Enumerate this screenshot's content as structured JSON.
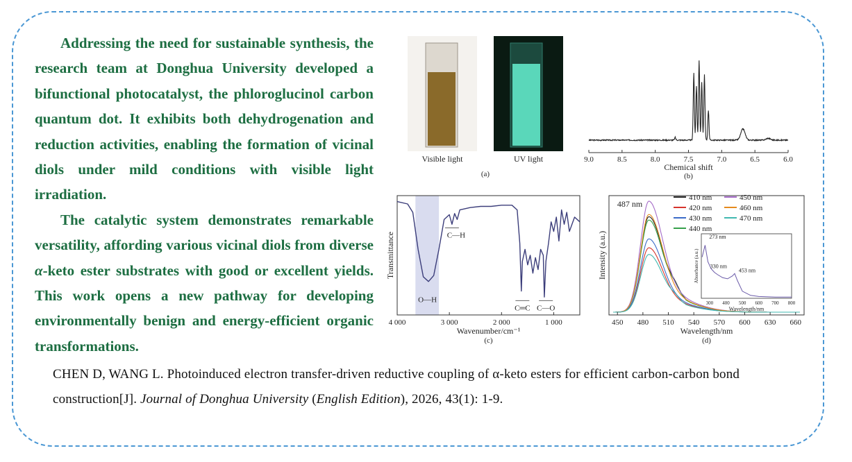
{
  "paragraphs": [
    "Addressing the need for sustainable synthesis, the research team at Donghua University developed a bifunctional photocatalyst, the phloroglucinol carbon quantum dot. It exhibits both dehydrogenation and reduction activities, enabling the formation of vicinal diols under mild conditions with visible light irradiation.",
    "The catalytic system demonstrates remarkable versatility, affording various vicinal diols from diverse α-keto ester substrates with good or excellent yields. This work opens a new pathway for developing environmentally benign and energy-efficient organic transformations."
  ],
  "citation": {
    "authors_title": "CHEN D, WANG L. Photoinduced electron transfer-driven reductive coupling of α-keto esters for efficient carbon-carbon bond construction[J]. ",
    "journal": "Journal of Donghua University",
    "paren_open": " (",
    "edition": "English Edition",
    "rest": "), 2026, 43(1): 1-9."
  },
  "panel_a": {
    "label": "(a)",
    "left_caption": "Visible light",
    "right_caption": "UV light",
    "colors": {
      "visible_liquid": "#8a6a2a",
      "uv_background": "#0a1a12",
      "uv_liquid": "#5fe3c4"
    }
  },
  "chart_data": [
    {
      "type": "line",
      "panel": "(b)",
      "xlabel": "Chemical shift",
      "ylabel": "",
      "xlim": [
        9.0,
        6.0
      ],
      "x_ticks": [
        "9.0",
        "8.5",
        "8.0",
        "7.5",
        "7.0",
        "6.5",
        "6.0"
      ],
      "x_reversed": true,
      "peaks": [
        {
          "x": 7.7,
          "y": 0.03
        },
        {
          "x": 7.42,
          "y": 0.72
        },
        {
          "x": 7.38,
          "y": 0.58
        },
        {
          "x": 7.34,
          "y": 0.85
        },
        {
          "x": 7.3,
          "y": 0.62
        },
        {
          "x": 7.26,
          "y": 0.7
        },
        {
          "x": 7.2,
          "y": 0.32
        },
        {
          "x": 6.68,
          "y": 0.12
        },
        {
          "x": 6.3,
          "y": 0.02
        }
      ],
      "color": "#222222"
    },
    {
      "type": "line",
      "panel": "(c)",
      "xlabel": "Wavenumber/cm⁻¹",
      "ylabel": "Transmittance",
      "xlim": [
        4000,
        500
      ],
      "x_ticks": [
        "4 000",
        "3 000",
        "2 000",
        "1 000"
      ],
      "x_reversed": true,
      "x": [
        4000,
        3800,
        3700,
        3600,
        3500,
        3400,
        3300,
        3200,
        3100,
        3000,
        2950,
        2900,
        2850,
        2800,
        2600,
        2400,
        2200,
        2000,
        1800,
        1700,
        1650,
        1620,
        1600,
        1550,
        1500,
        1450,
        1400,
        1350,
        1300,
        1250,
        1200,
        1180,
        1150,
        1100,
        1050,
        1000,
        950,
        900,
        850,
        800,
        750,
        700,
        600,
        500
      ],
      "y": [
        0.95,
        0.93,
        0.86,
        0.55,
        0.32,
        0.28,
        0.33,
        0.55,
        0.8,
        0.84,
        0.76,
        0.85,
        0.8,
        0.88,
        0.9,
        0.91,
        0.91,
        0.92,
        0.92,
        0.88,
        0.6,
        0.2,
        0.45,
        0.55,
        0.42,
        0.5,
        0.35,
        0.48,
        0.38,
        0.55,
        0.5,
        0.15,
        0.45,
        0.6,
        0.78,
        0.7,
        0.82,
        0.62,
        0.88,
        0.76,
        0.86,
        0.7,
        0.82,
        0.78
      ],
      "annotations": [
        "O—H",
        "C—H",
        "C═C",
        "C—O"
      ],
      "shaded_band": [
        3650,
        3200
      ],
      "color": "#3b3d7a",
      "band_color": "#d9dcef"
    },
    {
      "type": "line",
      "panel": "(d)",
      "xlabel": "Wavelength/nm",
      "ylabel": "Intensity (a.u.)",
      "xlim": [
        440,
        670
      ],
      "x_ticks": [
        "450",
        "480",
        "510",
        "540",
        "570",
        "600",
        "630",
        "660"
      ],
      "peak_label": "487 nm",
      "series": [
        {
          "name": "410 nm",
          "color": "#222222",
          "peak": 0.86
        },
        {
          "name": "420 nm",
          "color": "#d6342c",
          "peak": 0.58
        },
        {
          "name": "430 nm",
          "color": "#3b6bc8",
          "peak": 0.66
        },
        {
          "name": "440 nm",
          "color": "#35a04a",
          "peak": 0.83
        },
        {
          "name": "450 nm",
          "color": "#a56cc8",
          "peak": 1.0
        },
        {
          "name": "460 nm",
          "color": "#e58a1e",
          "peak": 0.88
        },
        {
          "name": "470 nm",
          "color": "#40b8b0",
          "peak": 0.52
        }
      ],
      "inset": {
        "xlabel": "Wavelength/nm",
        "ylabel": "Absorbance (a.u.)",
        "xlim": [
          250,
          800
        ],
        "x_ticks": [
          "300",
          "400",
          "500",
          "600",
          "700",
          "800"
        ],
        "labels": [
          "273 nm",
          "330 nm",
          "453 nm"
        ],
        "x": [
          255,
          273,
          290,
          310,
          330,
          350,
          380,
          410,
          440,
          453,
          470,
          500,
          550,
          600,
          700,
          800
        ],
        "y": [
          0.7,
          0.9,
          0.62,
          0.5,
          0.44,
          0.4,
          0.35,
          0.33,
          0.38,
          0.42,
          0.3,
          0.12,
          0.05,
          0.03,
          0.02,
          0.02
        ]
      }
    }
  ]
}
